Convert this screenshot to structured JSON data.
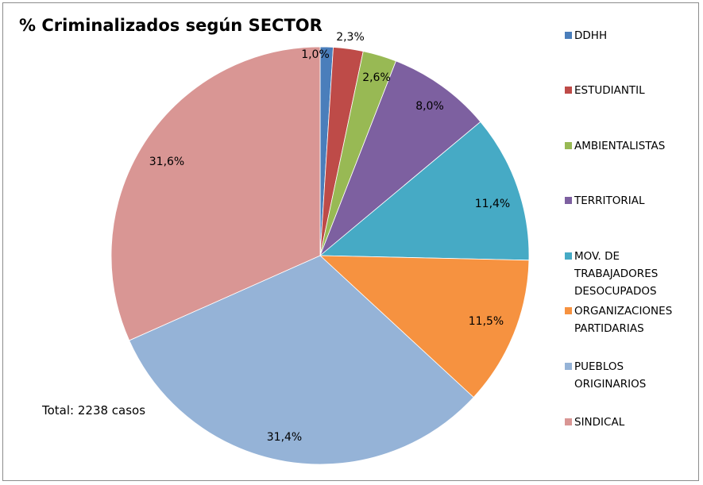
{
  "chart_data": {
    "type": "pie",
    "title": "% Criminalizados según SECTOR",
    "annotation": "Total: 2238 casos",
    "legend_position": "right",
    "categories": [
      "DDHH",
      "ESTUDIANTIL",
      "AMBIENTALISTAS",
      "TERRITORIAL",
      "MOV. DE TRABAJADORES DESOCUPADOS",
      "ORGANIZACIONES PARTIDARIAS",
      "PUEBLOS ORIGINARIOS",
      "SINDICAL"
    ],
    "legend_lines": [
      [
        "DDHH"
      ],
      [
        "ESTUDIANTIL"
      ],
      [
        "AMBIENTALISTAS"
      ],
      [
        "TERRITORIAL"
      ],
      [
        "MOV. DE",
        "TRABAJADORES",
        "DESOCUPADOS"
      ],
      [
        "ORGANIZACIONES",
        "PARTIDARIAS"
      ],
      [
        "PUEBLOS",
        "ORIGINARIOS"
      ],
      [
        "SINDICAL"
      ]
    ],
    "values": [
      1.0,
      2.3,
      2.6,
      8.0,
      11.4,
      11.5,
      31.4,
      31.6
    ],
    "data_labels": [
      "1,0%",
      "2,3%",
      "2,6%",
      "8,0%",
      "11,4%",
      "11,5%",
      "31,4%",
      "31,6%"
    ],
    "colors": [
      "#4A7EBB",
      "#BE4B48",
      "#98B954",
      "#7D60A0",
      "#46AAC5",
      "#F69240",
      "#95B3D7",
      "#D99694"
    ]
  }
}
